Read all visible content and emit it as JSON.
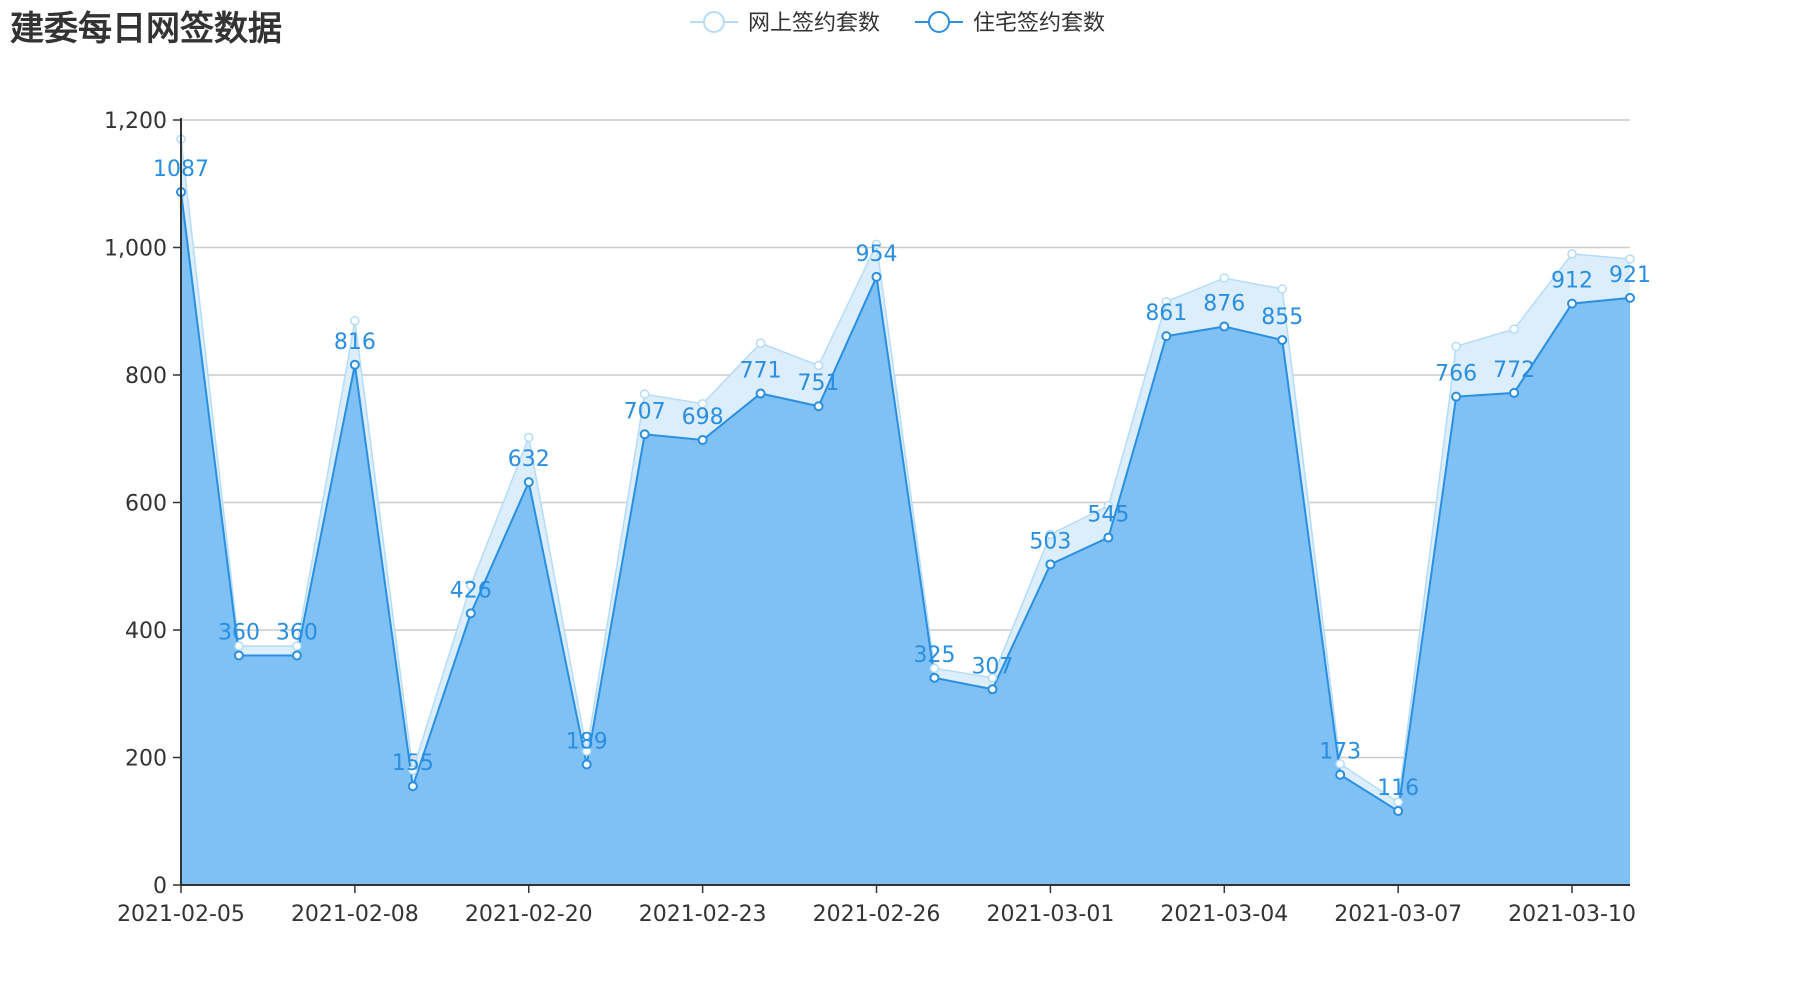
{
  "chart_data": {
    "type": "area",
    "title": "建委每日网签数据",
    "xlabel": "",
    "ylabel": "",
    "ylim": [
      0,
      1200
    ],
    "yticks": [
      0,
      200,
      400,
      600,
      800,
      1000,
      1200
    ],
    "ytick_labels": [
      "0",
      "200",
      "400",
      "600",
      "800",
      "1,000",
      "1,200"
    ],
    "x": [
      "2021-02-05",
      "2021-02-06",
      "2021-02-07",
      "2021-02-08",
      "2021-02-09",
      "2021-02-19",
      "2021-02-20",
      "2021-02-21",
      "2021-02-22",
      "2021-02-23",
      "2021-02-24",
      "2021-02-25",
      "2021-02-26",
      "2021-02-27",
      "2021-02-28",
      "2021-03-01",
      "2021-03-02",
      "2021-03-03",
      "2021-03-04",
      "2021-03-05",
      "2021-03-06",
      "2021-03-07",
      "2021-03-08",
      "2021-03-09",
      "2021-03-10",
      "2021-03-11"
    ],
    "xtick_labels": [
      "2021-02-05",
      "2021-02-08",
      "2021-02-20",
      "2021-02-23",
      "2021-02-26",
      "2021-03-01",
      "2021-03-04",
      "2021-03-07",
      "2021-03-10"
    ],
    "grid": true,
    "legend_position": "top-center",
    "series": [
      {
        "name": "网上签约套数",
        "color": "#b5dcf7",
        "values": [
          1170,
          375,
          375,
          885,
          180,
          470,
          702,
          210,
          770,
          755,
          850,
          815,
          1005,
          340,
          325,
          550,
          595,
          915,
          952,
          935,
          190,
          130,
          845,
          872,
          990,
          982
        ]
      },
      {
        "name": "住宅签约套数",
        "color": "#2a8fe0",
        "fill": "#7fc1f5",
        "values": [
          1087,
          360,
          360,
          816,
          155,
          426,
          632,
          189,
          707,
          698,
          771,
          751,
          954,
          325,
          307,
          503,
          545,
          861,
          876,
          855,
          173,
          116,
          766,
          772,
          912,
          921
        ]
      }
    ]
  }
}
